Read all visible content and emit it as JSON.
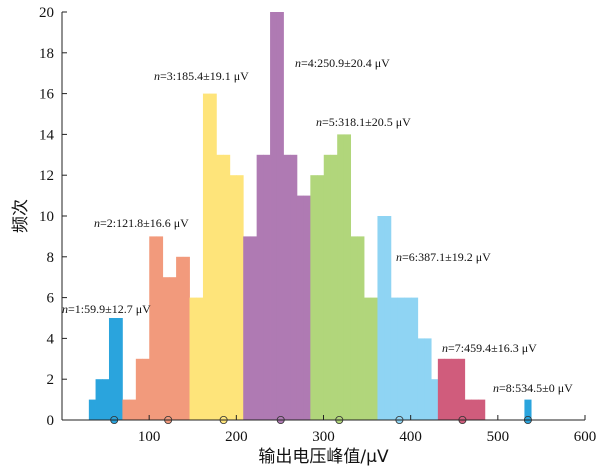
{
  "chart_data": {
    "type": "histogram",
    "xlabel": "输出电压峰值/μV",
    "ylabel": "频次",
    "xlim": [
      0,
      600
    ],
    "ylim": [
      0,
      20
    ],
    "xticks": [
      100,
      200,
      300,
      400,
      500,
      600
    ],
    "yticks": [
      0,
      2,
      4,
      6,
      8,
      10,
      12,
      14,
      16,
      18,
      20
    ],
    "bin_width": 7.7,
    "groups": [
      {
        "name": "1",
        "annotation": "n=1:59.9±12.7 μV",
        "mean": 59.9,
        "color": "#2aa4dd",
        "bins": [
          {
            "x0": 30.8,
            "count": 1
          },
          {
            "x0": 38.5,
            "count": 2
          },
          {
            "x0": 46.2,
            "count": 2
          },
          {
            "x0": 53.9,
            "count": 5
          },
          {
            "x0": 61.6,
            "count": 5
          }
        ]
      },
      {
        "name": "2",
        "annotation": "n=2:121.8±16.6 μV",
        "mean": 121.8,
        "color": "#f29a7c",
        "bins": [
          {
            "x0": 69.3,
            "count": 1
          },
          {
            "x0": 77.0,
            "count": 1
          },
          {
            "x0": 84.7,
            "count": 3
          },
          {
            "x0": 92.4,
            "count": 3
          },
          {
            "x0": 100.1,
            "count": 9
          },
          {
            "x0": 107.8,
            "count": 9
          },
          {
            "x0": 115.5,
            "count": 7
          },
          {
            "x0": 123.2,
            "count": 7
          },
          {
            "x0": 130.9,
            "count": 8
          },
          {
            "x0": 138.6,
            "count": 8
          }
        ]
      },
      {
        "name": "3",
        "annotation": "n=3:185.4±19.1 μV",
        "mean": 185.4,
        "color": "#fee47a",
        "bins": [
          {
            "x0": 146.3,
            "count": 6
          },
          {
            "x0": 154.0,
            "count": 6
          },
          {
            "x0": 161.7,
            "count": 16
          },
          {
            "x0": 169.4,
            "count": 16
          },
          {
            "x0": 177.1,
            "count": 13
          },
          {
            "x0": 184.8,
            "count": 13
          },
          {
            "x0": 192.5,
            "count": 12
          },
          {
            "x0": 200.2,
            "count": 12
          }
        ]
      },
      {
        "name": "4",
        "annotation": "n=4:250.9±20.4 μV",
        "mean": 250.9,
        "color": "#af7ab3",
        "bins": [
          {
            "x0": 207.9,
            "count": 9
          },
          {
            "x0": 215.6,
            "count": 9
          },
          {
            "x0": 223.3,
            "count": 13
          },
          {
            "x0": 231.0,
            "count": 13
          },
          {
            "x0": 238.7,
            "count": 20
          },
          {
            "x0": 246.4,
            "count": 20
          },
          {
            "x0": 254.1,
            "count": 13
          },
          {
            "x0": 261.8,
            "count": 13
          },
          {
            "x0": 269.5,
            "count": 11
          },
          {
            "x0": 277.2,
            "count": 11
          }
        ]
      },
      {
        "name": "5",
        "annotation": "n=5:318.1±20.5 μV",
        "mean": 318.1,
        "color": "#b1d67b",
        "bins": [
          {
            "x0": 284.9,
            "count": 12
          },
          {
            "x0": 292.6,
            "count": 12
          },
          {
            "x0": 300.3,
            "count": 13
          },
          {
            "x0": 308.0,
            "count": 13
          },
          {
            "x0": 315.7,
            "count": 14
          },
          {
            "x0": 323.4,
            "count": 14
          },
          {
            "x0": 331.1,
            "count": 9
          },
          {
            "x0": 338.8,
            "count": 9
          },
          {
            "x0": 346.5,
            "count": 6
          },
          {
            "x0": 354.2,
            "count": 6
          }
        ]
      },
      {
        "name": "6",
        "annotation": "n=6:387.1±19.2 μV",
        "mean": 387.1,
        "color": "#8fd4f3",
        "bins": [
          {
            "x0": 361.9,
            "count": 10
          },
          {
            "x0": 369.6,
            "count": 10
          },
          {
            "x0": 377.3,
            "count": 6
          },
          {
            "x0": 385.0,
            "count": 6
          },
          {
            "x0": 392.7,
            "count": 6
          },
          {
            "x0": 400.4,
            "count": 6
          },
          {
            "x0": 408.1,
            "count": 4
          },
          {
            "x0": 415.8,
            "count": 4
          },
          {
            "x0": 423.5,
            "count": 2
          }
        ]
      },
      {
        "name": "7",
        "annotation": "n=7:459.4±16.3 μV",
        "mean": 459.4,
        "color": "#d05c7c",
        "bins": [
          {
            "x0": 431.2,
            "count": 3
          },
          {
            "x0": 438.9,
            "count": 3
          },
          {
            "x0": 446.6,
            "count": 3
          },
          {
            "x0": 454.3,
            "count": 3
          },
          {
            "x0": 462.0,
            "count": 1
          },
          {
            "x0": 469.7,
            "count": 1
          },
          {
            "x0": 477.4,
            "count": 1
          }
        ]
      },
      {
        "name": "8",
        "annotation": "n=8:534.5±0 μV",
        "mean": 534.5,
        "color": "#2aa4dd",
        "bins": [
          {
            "x0": 530.5,
            "count": 1
          }
        ]
      }
    ]
  }
}
